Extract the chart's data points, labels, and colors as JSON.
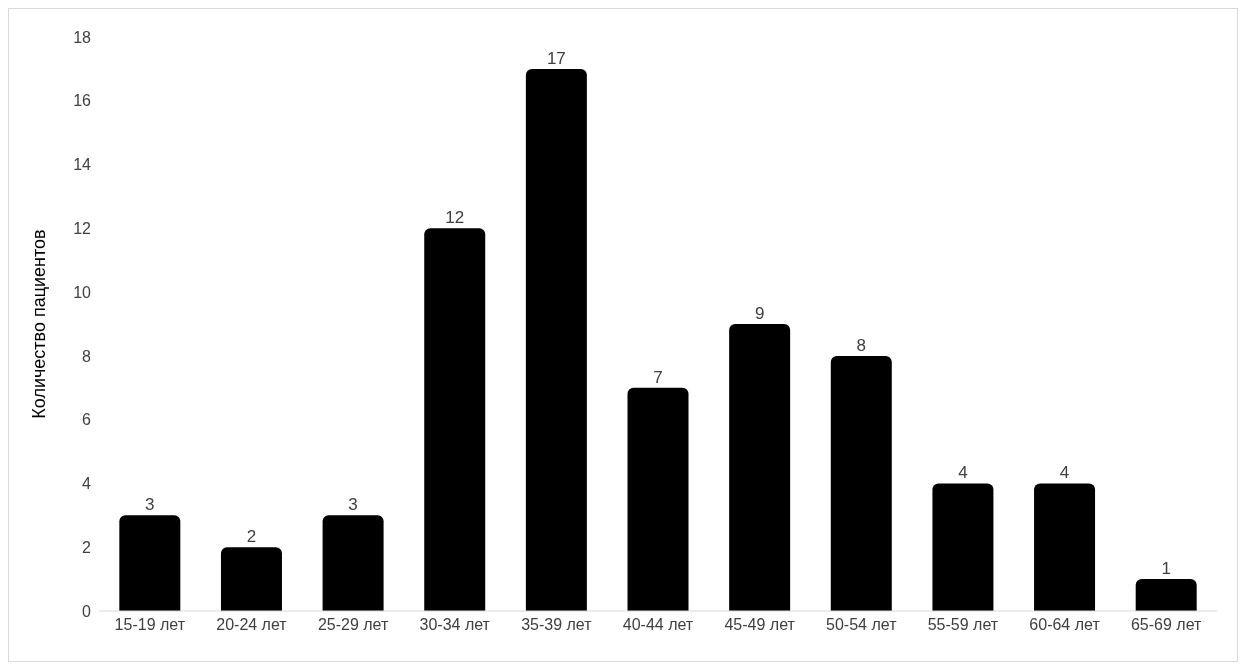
{
  "chart_data": {
    "type": "bar",
    "ylabel": "Количество пациентов",
    "categories": [
      "15-19 лет",
      "20-24 лет",
      "25-29 лет",
      "30-34 лет",
      "35-39 лет",
      "40-44 лет",
      "45-49 лет",
      "50-54 лет",
      "55-59 лет",
      "60-64 лет",
      "65-69 лет"
    ],
    "values": [
      3,
      2,
      3,
      12,
      17,
      7,
      9,
      8,
      4,
      4,
      1
    ],
    "color": "#000000",
    "ylim": [
      0,
      18
    ],
    "yticks": [
      0,
      2,
      4,
      6,
      8,
      10,
      12,
      14,
      16,
      18
    ],
    "grid": false,
    "data_labels": true
  }
}
